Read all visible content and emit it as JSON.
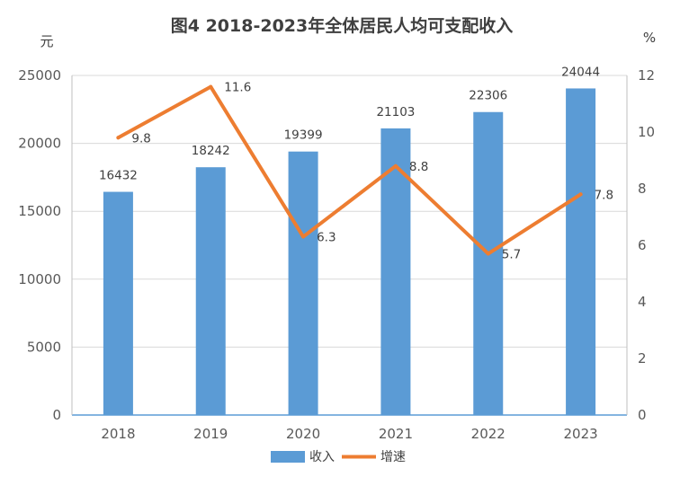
{
  "chart_data": {
    "type": "bar",
    "title": "图4  2018-2023年全体居民人均可支配收入",
    "y_left_unit": "元",
    "y_right_unit": "%",
    "categories": [
      "2018",
      "2019",
      "2020",
      "2021",
      "2022",
      "2023"
    ],
    "series": [
      {
        "name": "收入",
        "type": "bar",
        "axis": "left",
        "color": "#5b9bd5",
        "values": [
          16432,
          18242,
          19399,
          21103,
          22306,
          24044
        ]
      },
      {
        "name": "增速",
        "type": "line",
        "axis": "right",
        "color": "#ed7d31",
        "values": [
          9.8,
          11.6,
          6.3,
          8.8,
          5.7,
          7.8
        ]
      }
    ],
    "y_left": {
      "min": 0,
      "max": 25000,
      "ticks": [
        0,
        5000,
        10000,
        15000,
        20000,
        25000
      ]
    },
    "y_right": {
      "min": 0,
      "max": 12,
      "ticks": [
        0,
        2,
        4,
        6,
        8,
        10,
        12
      ]
    },
    "grid": true,
    "legend_position": "bottom"
  }
}
